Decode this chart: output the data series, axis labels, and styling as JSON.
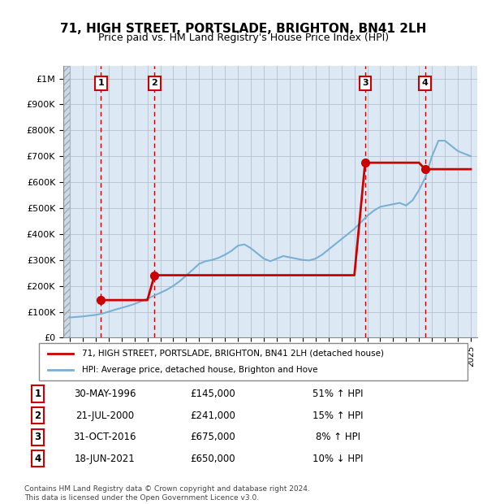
{
  "title": "71, HIGH STREET, PORTSLADE, BRIGHTON, BN41 2LH",
  "subtitle": "Price paid vs. HM Land Registry's House Price Index (HPI)",
  "ylabel_left": "",
  "xlabel": "",
  "background_color": "#ffffff",
  "plot_bg_color": "#dce9f5",
  "hatch_color": "#c8d8e8",
  "grid_color": "#b0b8c8",
  "sale_line_color": "#cc0000",
  "hpi_line_color": "#7ab0d4",
  "sale_marker_color": "#cc0000",
  "vline_color": "#cc0000",
  "ylim": [
    0,
    1050000
  ],
  "xlim_start": 1993.5,
  "xlim_end": 2025.5,
  "yticks": [
    0,
    100000,
    200000,
    300000,
    400000,
    500000,
    600000,
    700000,
    800000,
    900000,
    1000000
  ],
  "ytick_labels": [
    "£0",
    "£100K",
    "£200K",
    "£300K",
    "£400K",
    "£500K",
    "£600K",
    "£700K",
    "£800K",
    "£900K",
    "£1M"
  ],
  "sale_dates": [
    1996.41,
    2000.55,
    2016.83,
    2021.46
  ],
  "sale_prices": [
    145000,
    241000,
    675000,
    650000
  ],
  "sale_labels": [
    "1",
    "2",
    "3",
    "4"
  ],
  "transactions": [
    {
      "label": "1",
      "date": "30-MAY-1996",
      "price": "£145,000",
      "hpi": "51% ↑ HPI"
    },
    {
      "label": "2",
      "date": "21-JUL-2000",
      "price": "£241,000",
      "hpi": "15% ↑ HPI"
    },
    {
      "label": "3",
      "date": "31-OCT-2016",
      "price": "£675,000",
      "hpi": "8% ↑ HPI"
    },
    {
      "label": "4",
      "date": "18-JUN-2021",
      "price": "£650,000",
      "hpi": "10% ↓ HPI"
    }
  ],
  "legend_sale_label": "71, HIGH STREET, PORTSLADE, BRIGHTON, BN41 2LH (detached house)",
  "legend_hpi_label": "HPI: Average price, detached house, Brighton and Hove",
  "footer_text": "Contains HM Land Registry data © Crown copyright and database right 2024.\nThis data is licensed under the Open Government Licence v3.0.",
  "hpi_years": [
    1994,
    1994.5,
    1995,
    1995.5,
    1996,
    1996.5,
    1997,
    1997.5,
    1998,
    1998.5,
    1999,
    1999.5,
    2000,
    2000.5,
    2001,
    2001.5,
    2002,
    2002.5,
    2003,
    2003.5,
    2004,
    2004.5,
    2005,
    2005.5,
    2006,
    2006.5,
    2007,
    2007.5,
    2008,
    2008.5,
    2009,
    2009.5,
    2010,
    2010.5,
    2011,
    2011.5,
    2012,
    2012.5,
    2013,
    2013.5,
    2014,
    2014.5,
    2015,
    2015.5,
    2016,
    2016.5,
    2017,
    2017.5,
    2018,
    2018.5,
    2019,
    2019.5,
    2020,
    2020.5,
    2021,
    2021.5,
    2022,
    2022.5,
    2023,
    2023.5,
    2024,
    2024.5,
    2025
  ],
  "hpi_values": [
    78000,
    80000,
    82000,
    85000,
    88000,
    93000,
    100000,
    108000,
    115000,
    122000,
    130000,
    140000,
    150000,
    162000,
    173000,
    185000,
    200000,
    218000,
    240000,
    262000,
    285000,
    295000,
    300000,
    308000,
    320000,
    335000,
    355000,
    360000,
    345000,
    325000,
    305000,
    295000,
    305000,
    315000,
    310000,
    305000,
    300000,
    298000,
    305000,
    320000,
    340000,
    360000,
    380000,
    400000,
    420000,
    445000,
    470000,
    490000,
    505000,
    510000,
    515000,
    520000,
    510000,
    530000,
    570000,
    620000,
    700000,
    760000,
    760000,
    740000,
    720000,
    710000,
    700000
  ],
  "sale_line_years": [
    1993.5,
    1994,
    1994.5,
    1995,
    1995.5,
    1996,
    1996.41,
    1996.5,
    1997,
    1997.5,
    1998,
    1998.5,
    1999,
    1999.5,
    2000,
    2000.55,
    2001,
    2001.5,
    2002,
    2002.5,
    2003,
    2003.5,
    2004,
    2004.5,
    2005,
    2005.5,
    2006,
    2006.5,
    2007,
    2007.5,
    2008,
    2008.5,
    2009,
    2009.5,
    2010,
    2010.5,
    2011,
    2011.5,
    2012,
    2012.5,
    2013,
    2013.5,
    2014,
    2014.5,
    2015,
    2015.5,
    2016,
    2016.83,
    2017,
    2017.5,
    2018,
    2018.5,
    2019,
    2019.5,
    2020,
    2020.5,
    2021,
    2021.46,
    2022,
    2022.5,
    2023,
    2023.5,
    2024,
    2024.5,
    2025
  ],
  "sale_line_values": [
    null,
    null,
    null,
    null,
    null,
    null,
    145000,
    145000,
    145000,
    145000,
    145000,
    145000,
    145000,
    145000,
    145000,
    241000,
    241000,
    241000,
    241000,
    241000,
    241000,
    241000,
    241000,
    241000,
    241000,
    241000,
    241000,
    241000,
    241000,
    241000,
    241000,
    241000,
    241000,
    241000,
    241000,
    241000,
    241000,
    241000,
    241000,
    241000,
    241000,
    241000,
    241000,
    241000,
    241000,
    241000,
    241000,
    675000,
    675000,
    675000,
    675000,
    675000,
    675000,
    675000,
    675000,
    675000,
    675000,
    650000,
    650000,
    650000,
    650000,
    650000,
    650000,
    650000,
    650000
  ]
}
